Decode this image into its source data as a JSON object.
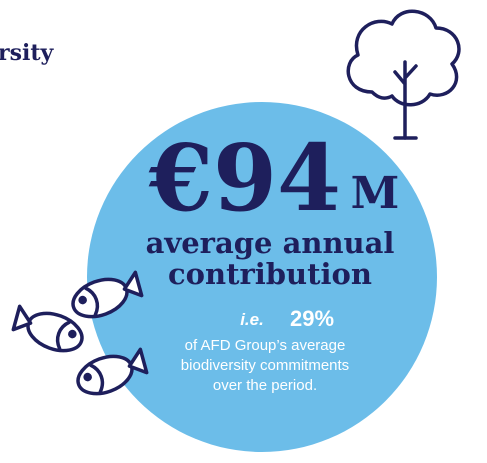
{
  "heading": "rsity",
  "figure": {
    "amount": "€94",
    "unit": "M",
    "line1": "average annual",
    "line2": "contribution"
  },
  "detail": {
    "prefix": "i.e.",
    "share": "29%",
    "lines": [
      "of AFD Group’s average",
      "biodiversity commitments",
      "over the period."
    ]
  }
}
